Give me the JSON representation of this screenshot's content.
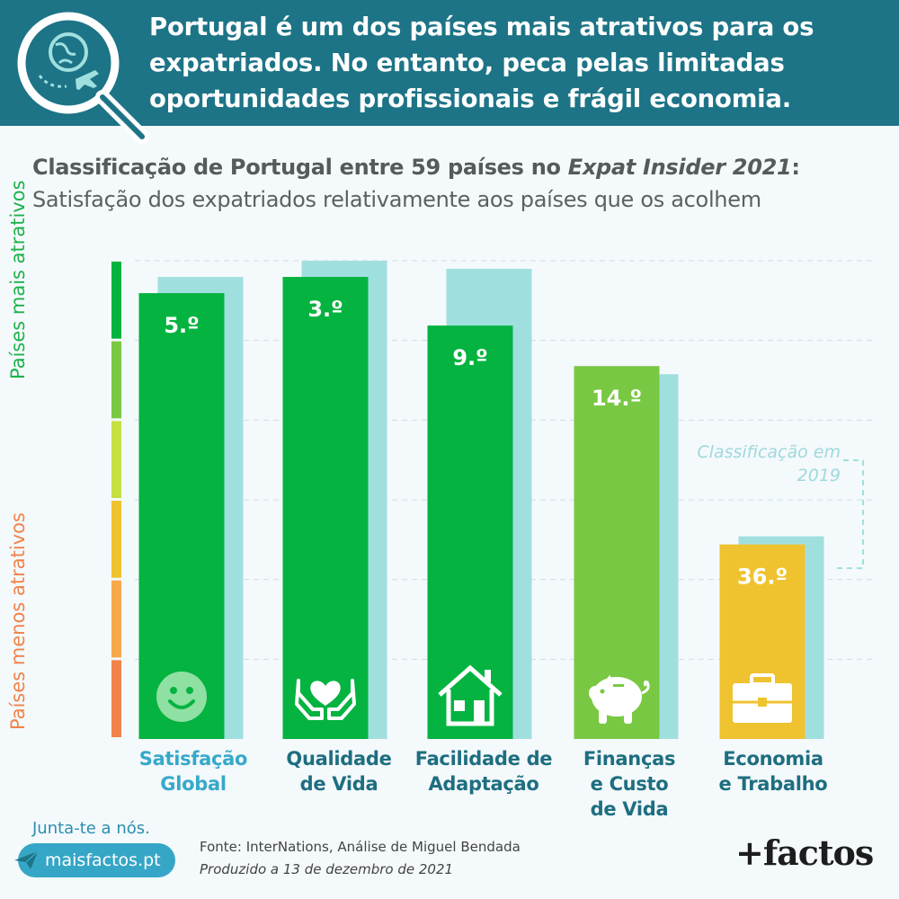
{
  "header": {
    "title": "Portugal é um dos países mais atrativos para os expatriados. No entanto, peca pelas limitadas oportunidades profissionais e frágil economia."
  },
  "subtitle": {
    "bold_part1": "Classificação de Portugal entre 59 países no ",
    "bold_italic": "Expat Insider 2021",
    "bold_part2": ":",
    "regular": "Satisfação dos expatriados relativamente aos países que os acolhem"
  },
  "axis": {
    "top_label": "Países mais atrativos",
    "bottom_label": "Países menos atrativos"
  },
  "legend": {
    "label_2019": "Classificação em 2019"
  },
  "chart_data": {
    "type": "bar",
    "title": "Classificação de Portugal entre 59 países no Expat Insider 2021",
    "subtitle": "Satisfação dos expatriados relativamente aos países que os acolhem",
    "total_countries": 59,
    "categories": [
      "Satisfação Global",
      "Qualidade de Vida",
      "Facilidade de Adaptação",
      "Finanças e Custo de Vida",
      "Economia e Trabalho"
    ],
    "series": [
      {
        "name": "",
        "values": [
          5,
          3,
          9,
          14,
          36
        ],
        "labels": [
          "5.º",
          "3.º",
          "9.º",
          "14.º",
          "36.º"
        ]
      },
      {
        "name": "Classificação em 2019",
        "values": [
          3,
          1,
          2,
          15,
          35
        ]
      }
    ],
    "icons": [
      "smile-icon",
      "hands-heart-icon",
      "house-icon",
      "piggy-bank-icon",
      "briefcase-icon"
    ],
    "colors": {
      "bars_2021": [
        "#05b340",
        "#05b340",
        "#05b340",
        "#79c843",
        "#efc32f"
      ],
      "bar_2019": "#9fe0df",
      "scale": [
        "#05b340",
        "#79c843",
        "#c6e042",
        "#efc32f",
        "#f7a84a",
        "#f0834a"
      ]
    }
  },
  "footer": {
    "join": "Junta-te a nós.",
    "site": "maisfactos.pt",
    "source": "Fonte: InterNations, Análise de Miguel Bendada",
    "produced": "Produzido a 13 de dezembro de 2021",
    "brand": "+factos"
  }
}
